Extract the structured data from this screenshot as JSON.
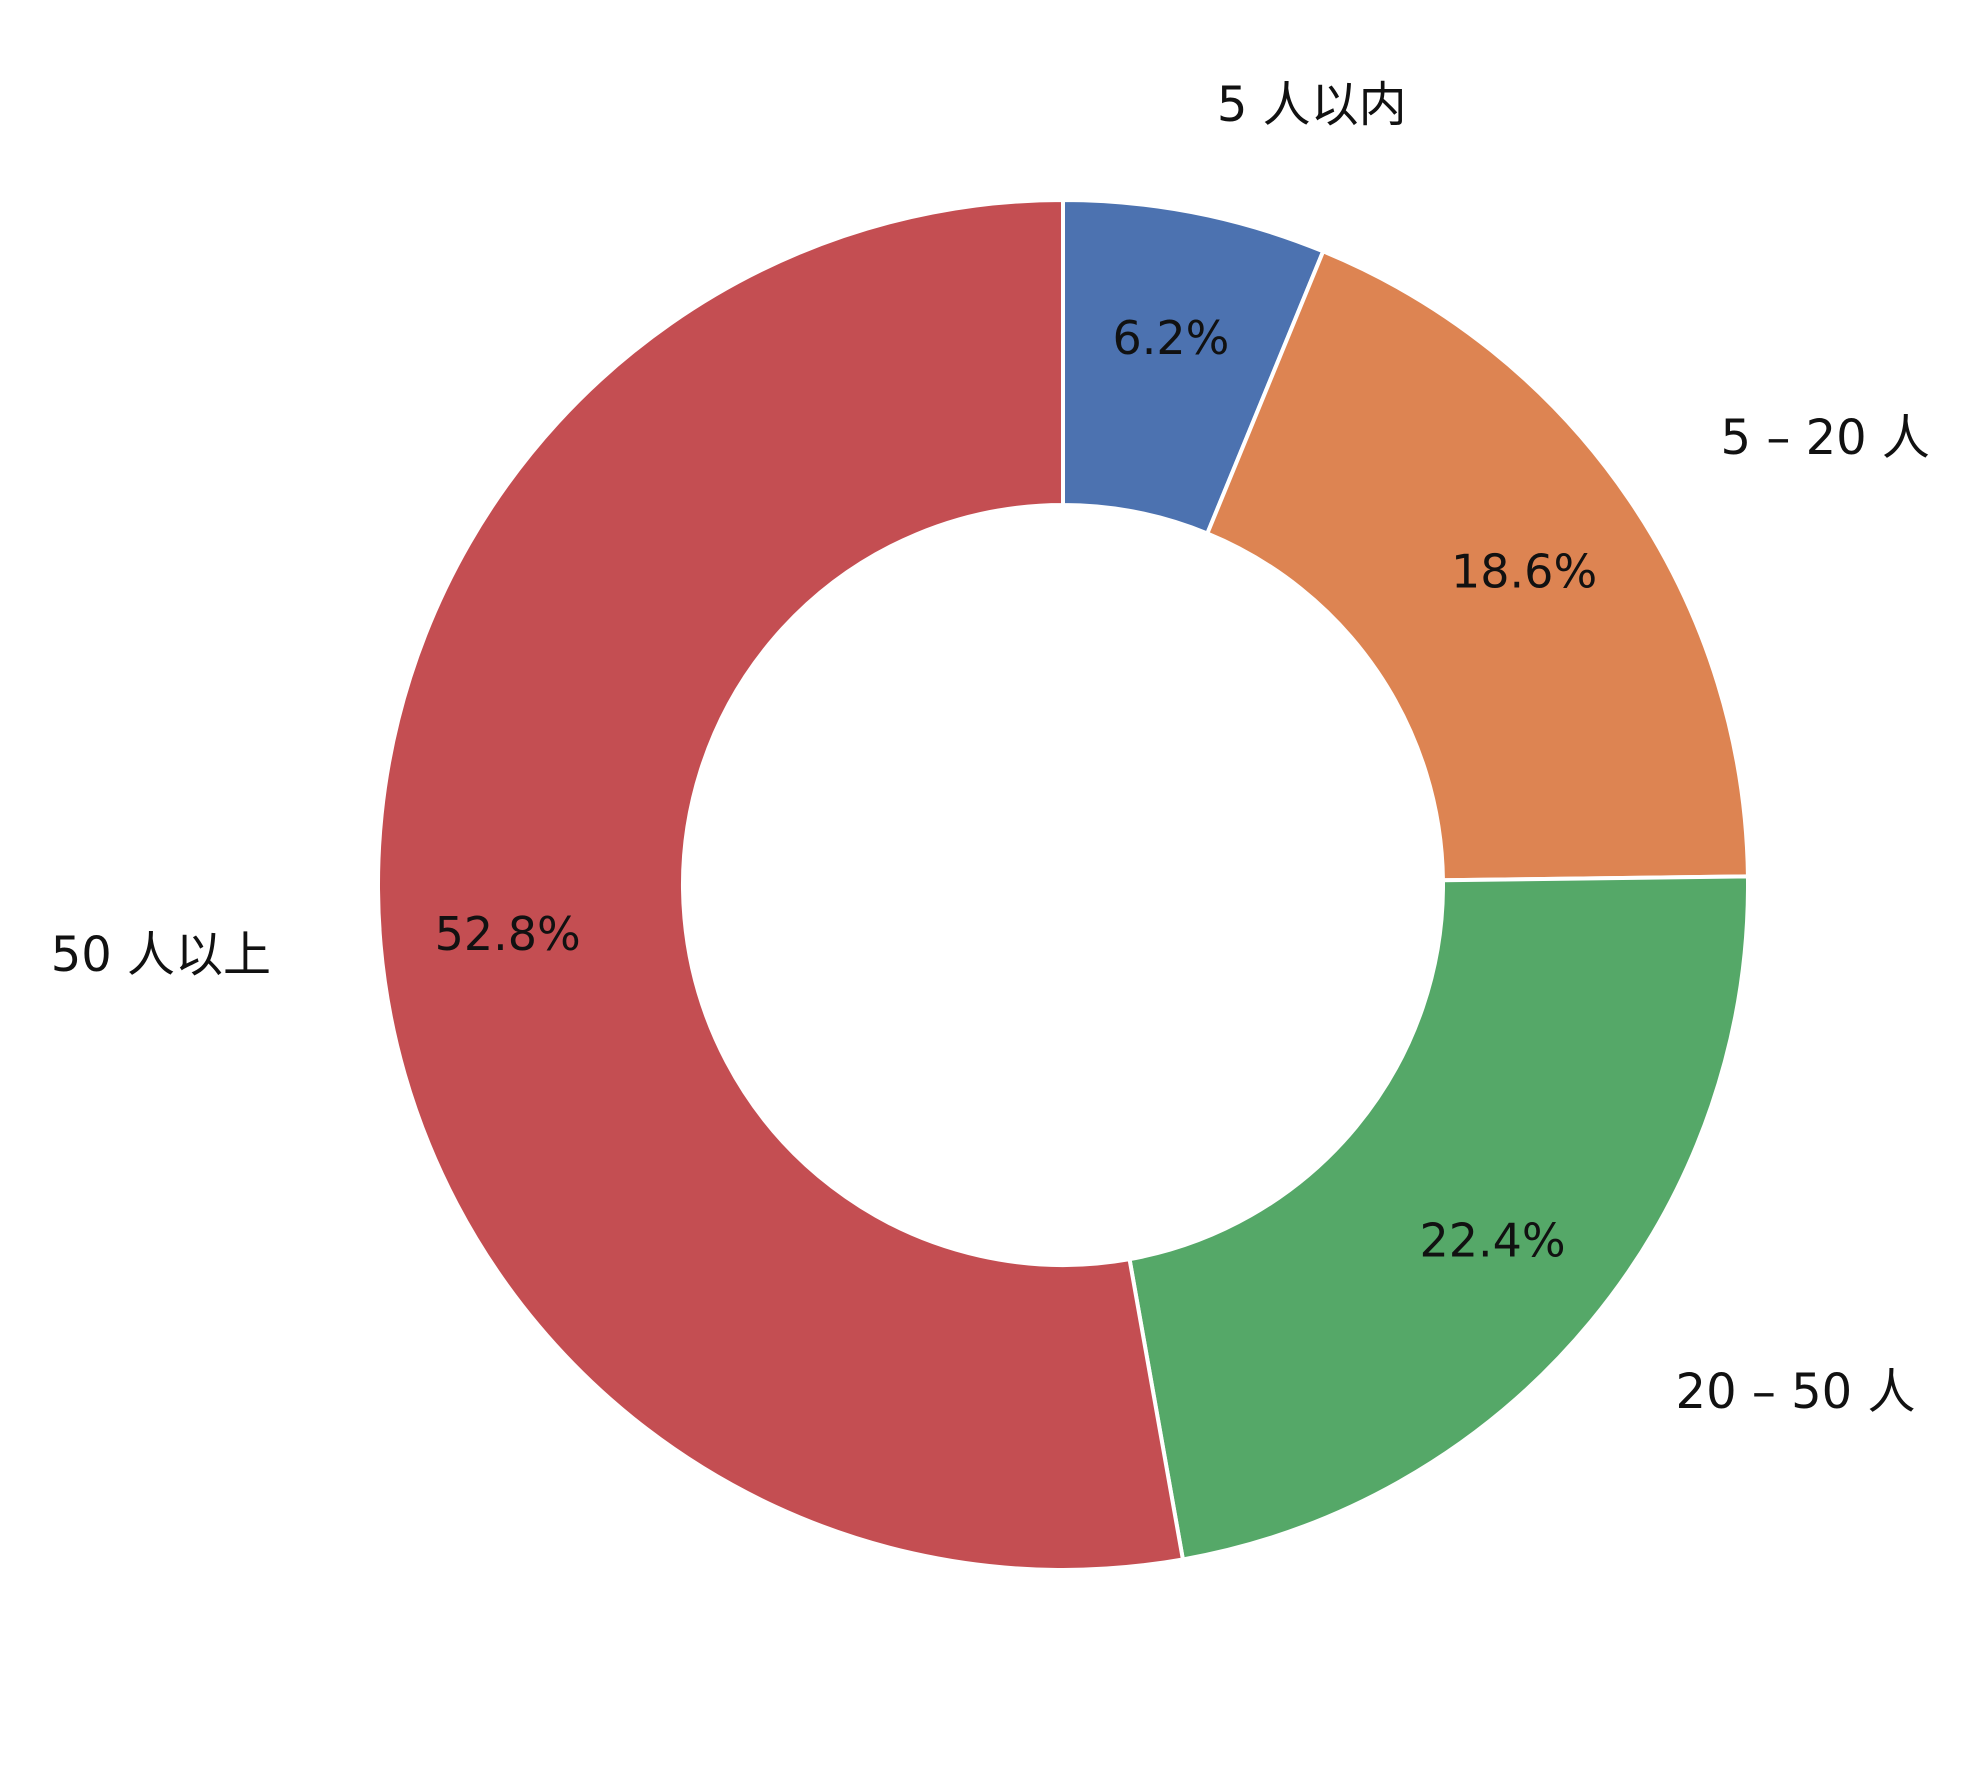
{
  "chart_data": {
    "type": "pie",
    "donut": true,
    "categories": [
      "5 人以内",
      "5 – 20 人",
      "20 – 50 人",
      "50 人以上"
    ],
    "values": [
      6.2,
      18.6,
      22.4,
      52.8
    ],
    "value_labels": [
      "6.2%",
      "18.6%",
      "22.4%",
      "52.8%"
    ],
    "colors": [
      "#4c72b0",
      "#dd8452",
      "#55a868",
      "#c44e52"
    ],
    "start": "12 o'clock",
    "direction": "clockwise",
    "edge_color": "#ffffff",
    "legend": "none",
    "title": ""
  }
}
